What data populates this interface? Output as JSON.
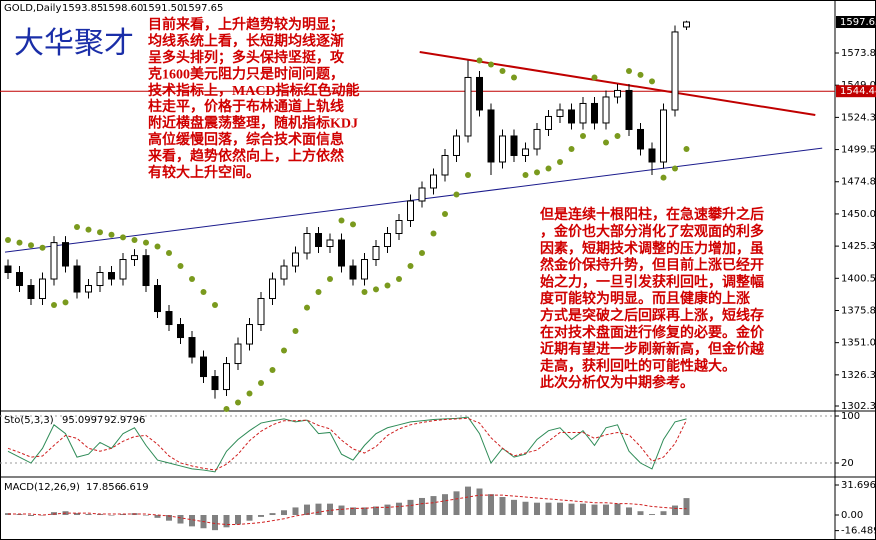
{
  "chart_data": [
    {
      "type": "candlestick",
      "title": "GOLD,Daily",
      "ohlc_labels": [
        "1593.85",
        "1598.60",
        "1591.50",
        "1597.65"
      ],
      "watermark": "大华聚才",
      "open": [
        1410,
        1405,
        1395,
        1385,
        1400,
        1428,
        1410,
        1390,
        1395,
        1405,
        1400,
        1415,
        1418,
        1395,
        1375,
        1365,
        1355,
        1340,
        1325,
        1315,
        1335,
        1350,
        1365,
        1385,
        1400,
        1410,
        1420,
        1435,
        1425,
        1430,
        1410,
        1400,
        1415,
        1425,
        1435,
        1445,
        1460,
        1470,
        1480,
        1495,
        1510,
        1555,
        1530,
        1490,
        1510,
        1495,
        1500,
        1515,
        1525,
        1530,
        1520,
        1535,
        1520,
        1540,
        1545,
        1515,
        1500,
        1490,
        1530,
        1593.85
      ],
      "high": [
        1415,
        1410,
        1400,
        1405,
        1433,
        1433,
        1415,
        1400,
        1410,
        1410,
        1420,
        1423,
        1423,
        1400,
        1380,
        1370,
        1360,
        1345,
        1330,
        1340,
        1355,
        1370,
        1390,
        1405,
        1415,
        1425,
        1440,
        1440,
        1435,
        1435,
        1415,
        1420,
        1430,
        1440,
        1450,
        1465,
        1475,
        1485,
        1500,
        1515,
        1568,
        1560,
        1535,
        1515,
        1515,
        1505,
        1520,
        1530,
        1535,
        1535,
        1540,
        1540,
        1545,
        1550,
        1550,
        1520,
        1505,
        1535,
        1595,
        1598.6
      ],
      "low": [
        1400,
        1390,
        1380,
        1380,
        1395,
        1405,
        1385,
        1385,
        1390,
        1395,
        1395,
        1410,
        1390,
        1370,
        1360,
        1350,
        1335,
        1320,
        1308,
        1310,
        1330,
        1345,
        1360,
        1380,
        1395,
        1405,
        1415,
        1420,
        1420,
        1405,
        1395,
        1395,
        1410,
        1420,
        1430,
        1440,
        1455,
        1465,
        1475,
        1490,
        1505,
        1525,
        1480,
        1485,
        1490,
        1490,
        1495,
        1510,
        1520,
        1515,
        1515,
        1515,
        1515,
        1535,
        1510,
        1495,
        1480,
        1485,
        1525,
        1591.5
      ],
      "close": [
        1405,
        1395,
        1385,
        1400,
        1428,
        1410,
        1390,
        1395,
        1405,
        1400,
        1415,
        1418,
        1395,
        1375,
        1365,
        1355,
        1340,
        1325,
        1315,
        1335,
        1350,
        1365,
        1385,
        1400,
        1410,
        1420,
        1435,
        1425,
        1430,
        1410,
        1400,
        1415,
        1425,
        1435,
        1445,
        1460,
        1470,
        1480,
        1495,
        1510,
        1555,
        1530,
        1490,
        1510,
        1495,
        1500,
        1515,
        1525,
        1530,
        1520,
        1535,
        1520,
        1540,
        1545,
        1515,
        1500,
        1490,
        1530,
        1590,
        1597.65
      ],
      "sar_values": [
        1430,
        1428,
        1426,
        1424,
        1380,
        1382,
        1440,
        1438,
        1436,
        1434,
        1432,
        1430,
        1428,
        1425,
        1420,
        1410,
        1400,
        1390,
        1380,
        1300,
        1305,
        1312,
        1320,
        1330,
        1345,
        1360,
        1378,
        1390,
        1400,
        1445,
        1442,
        1390,
        1392,
        1395,
        1400,
        1410,
        1420,
        1435,
        1450,
        1465,
        1480,
        1568,
        1565,
        1560,
        1555,
        1480,
        1482,
        1485,
        1490,
        1500,
        1510,
        1555,
        1505,
        1510,
        1560,
        1557,
        1552,
        1478,
        1485,
        1500
      ],
      "sar_color": "#7a9a1e",
      "bull_color": "#ffffff",
      "bear_color": "#000000",
      "ylim": [
        1299.27,
        1614.57
      ],
      "yticks": [
        {
          "value": 1573.8,
          "label": "1573.80"
        },
        1549.05,
        {
          "value": 1524.3,
          "label": "1524.30"
        },
        1499.55,
        {
          "value": 1474.8,
          "label": "1474.80"
        },
        1450.05,
        {
          "value": 1425.3,
          "label": "1425.30"
        },
        1400.55,
        {
          "value": 1375.8,
          "label": "1375.80"
        },
        1351.05,
        {
          "value": 1326.3,
          "label": "1326.30"
        },
        1302.35
      ],
      "hline": {
        "value": 1544.44,
        "color": "#c00000"
      },
      "trendlines": [
        {
          "color": "#c00000",
          "start": {
            "index": 35.8,
            "price": 1574.6
          },
          "end": {
            "index": 70.2,
            "price": 1526.1
          }
        },
        {
          "color": "#1a1a8c",
          "start": {
            "index": -0.26,
            "price": 1420.7
          },
          "end": {
            "index": 70.8,
            "price": 1500.7
          }
        }
      ],
      "annotations": [
        {
          "lines": [
            "目前来看，上升趋势较为明显；",
            "均线系统上看，长短期均线逐渐",
            "呈多头排列；多头保持坚挺，攻",
            "克1600美元阻力只是时间问题，",
            "技术指标上，MACD指标红色动能",
            "柱走平，价格于布林通道上轨线",
            "附近横盘震荡整理，随机指标KDJ",
            "高位缓慢回落，综合技术面信息",
            "来看，趋势依然向上，上方依然",
            "有较大上升空间。"
          ]
        },
        {
          "lines": [
            "但是连续十根阳柱，在急速攀升之后",
            "，金价也大部分消化了宏观面的利多",
            "因素，短期技术调整的压力增加，虽",
            "然金价保持升势，但目前上涨已经开",
            "始之力，一旦引发获利回吐，调整幅",
            "度可能较为明显。而且健康的上涨",
            "方式是突破之后回踩再上涨，短线存",
            "在对技术盘面进行修复的必要。金价",
            "近期有望进一步刷新新高，但金价越",
            "走高，获利回吐的可能性越大。",
            "此次分析仅为中期参考。"
          ]
        }
      ]
    },
    {
      "type": "stochastic",
      "title": "Sto(5,3,3)",
      "series": [
        {
          "color": "#2e8b57",
          "values": [
            40,
            30,
            20,
            45,
            85,
            70,
            30,
            35,
            55,
            45,
            70,
            80,
            50,
            25,
            20,
            15,
            10,
            8,
            5,
            40,
            60,
            75,
            88,
            92,
            95,
            90,
            93,
            70,
            72,
            35,
            25,
            50,
            70,
            80,
            85,
            90,
            92,
            94,
            95,
            96,
            98,
            70,
            20,
            45,
            30,
            35,
            60,
            75,
            80,
            60,
            75,
            50,
            80,
            85,
            40,
            20,
            10,
            60,
            90,
            95.0997
          ]
        },
        {
          "color": "#d02020",
          "values": [
            45,
            38,
            30,
            32,
            50,
            67,
            62,
            45,
            40,
            45,
            57,
            65,
            67,
            52,
            32,
            20,
            15,
            11,
            8,
            18,
            35,
            58,
            74,
            85,
            92,
            92,
            93,
            84,
            78,
            59,
            44,
            37,
            48,
            67,
            78,
            85,
            89,
            92,
            94,
            95,
            96,
            88,
            63,
            45,
            32,
            37,
            42,
            57,
            72,
            72,
            72,
            62,
            68,
            72,
            68,
            48,
            23,
            30,
            53,
            92.9796
          ]
        }
      ],
      "ylim": [
        -2.1,
        106.8
      ],
      "yticks": [
        100,
        20
      ]
    },
    {
      "type": "macd",
      "title": "MACD(12,26,9)",
      "histogram": {
        "color": "#808080",
        "values": [
          2,
          1,
          -1,
          0,
          3,
          4,
          2,
          1,
          1,
          0,
          1,
          2,
          0,
          -3,
          -6,
          -9,
          -12,
          -14,
          -16,
          -13,
          -10,
          -6,
          -2,
          2,
          5,
          8,
          11,
          12,
          12,
          10,
          8,
          8,
          9,
          11,
          13,
          16,
          18,
          20,
          22,
          25,
          30,
          28,
          22,
          19,
          16,
          14,
          13,
          13,
          13,
          12,
          12,
          11,
          11,
          12,
          8,
          4,
          1,
          4,
          10,
          17.856
        ]
      },
      "signal": {
        "color": "#d02020",
        "values": [
          1,
          1,
          1,
          0,
          1,
          2,
          2,
          2,
          1,
          1,
          1,
          1,
          1,
          0,
          -1,
          -3,
          -5,
          -7,
          -9,
          -10,
          -10,
          -9,
          -8,
          -6,
          -4,
          -1,
          1,
          3,
          5,
          6,
          7,
          7,
          8,
          8,
          9,
          10,
          12,
          13,
          15,
          17,
          19,
          21,
          21,
          21,
          20,
          19,
          18,
          17,
          16,
          15,
          14,
          13,
          13,
          12,
          12,
          11,
          9,
          8,
          7,
          6.619
        ]
      },
      "ylim": [
        -26.4,
        39.09
      ],
      "yticks": [
        31.696,
        {
          "value": 0,
          "label": "0.00"
        },
        -16.489
      ]
    }
  ]
}
